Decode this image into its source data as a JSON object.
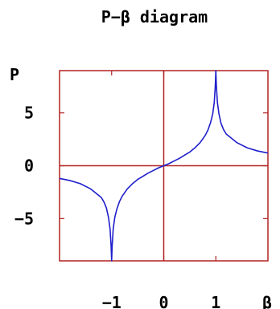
{
  "chart_data": {
    "type": "line",
    "title": "P−β diagram",
    "ylabel": "P",
    "xlabel": "β",
    "xlim": [
      -2,
      2
    ],
    "ylim": [
      -9,
      9
    ],
    "x_ticks": [
      {
        "value": -1,
        "label": "−1"
      },
      {
        "value": 0,
        "label": "0"
      },
      {
        "value": 1,
        "label": "1"
      }
    ],
    "y_ticks": [
      {
        "value": 5,
        "label": "5"
      },
      {
        "value": 0,
        "label": "0"
      },
      {
        "value": -5,
        "label": "−5"
      }
    ],
    "reference_lines": {
      "x": 0,
      "y": 0
    },
    "grid": false,
    "legend": "none",
    "colors": {
      "frame": "#b22222",
      "curve": "#1f1fcc",
      "text": "#000000"
    },
    "series": [
      {
        "x": [
          -2.0,
          -1.8,
          -1.6,
          -1.4,
          -1.3,
          -1.2,
          -1.15,
          -1.1,
          -1.06,
          -1.03,
          -1.01,
          -1.0,
          -0.99,
          -0.97,
          -0.94,
          -0.9,
          -0.85,
          -0.8,
          -0.7,
          -0.6,
          -0.5,
          -0.4,
          -0.3,
          -0.2,
          -0.1,
          0.0,
          0.1,
          0.2,
          0.3,
          0.4,
          0.5,
          0.6,
          0.7,
          0.8,
          0.85,
          0.9,
          0.94,
          0.97,
          0.99,
          1.0,
          1.01,
          1.03,
          1.06,
          1.1,
          1.15,
          1.2,
          1.3,
          1.4,
          1.6,
          1.8,
          2.0
        ],
        "y": [
          -1.2,
          -1.4,
          -1.7,
          -2.2,
          -2.6,
          -3.0,
          -3.4,
          -4.0,
          -4.9,
          -6.0,
          -7.6,
          -9.0,
          -7.6,
          -6.0,
          -4.9,
          -4.1,
          -3.4,
          -2.9,
          -2.2,
          -1.7,
          -1.3,
          -1.0,
          -0.7,
          -0.45,
          -0.2,
          0.0,
          0.2,
          0.45,
          0.7,
          1.0,
          1.3,
          1.7,
          2.2,
          2.9,
          3.4,
          4.1,
          4.9,
          6.0,
          7.6,
          9.0,
          7.6,
          6.0,
          4.9,
          4.0,
          3.4,
          3.0,
          2.6,
          2.2,
          1.7,
          1.4,
          1.2
        ]
      }
    ]
  }
}
